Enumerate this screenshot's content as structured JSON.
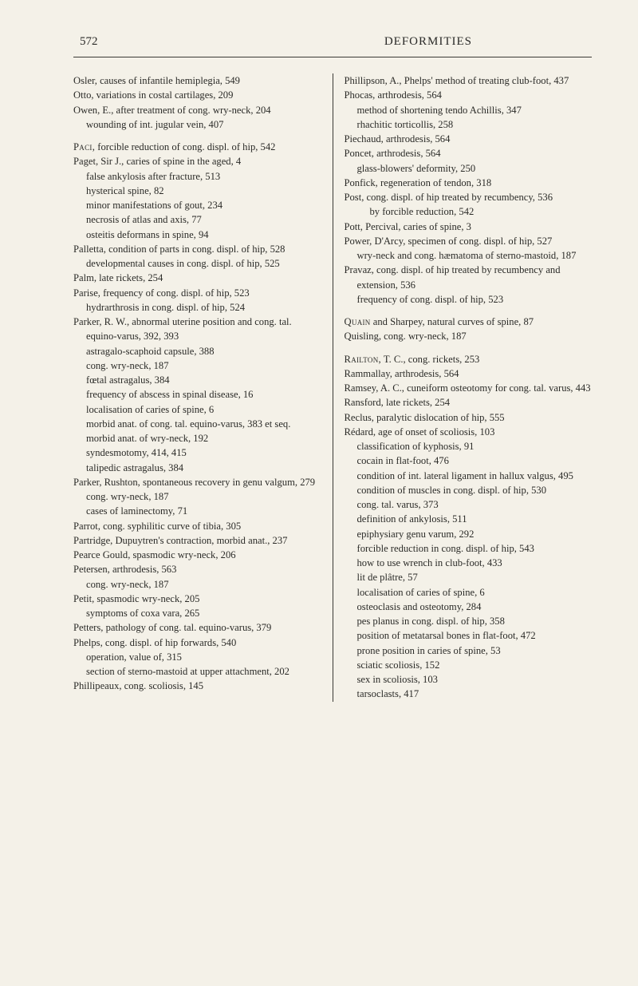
{
  "header": {
    "pageNumber": "572",
    "title": "DEFORMITIES"
  },
  "leftColumn": [
    {
      "t": "entry",
      "text": "Osler, causes of infantile hemiplegia, 549"
    },
    {
      "t": "entry",
      "text": "Otto, variations in costal cartilages, 209"
    },
    {
      "t": "entry",
      "text": "Owen, E., after treatment of cong. wry-neck, 204"
    },
    {
      "t": "sub",
      "text": "wounding of int. jugular vein, 407"
    },
    {
      "t": "gap"
    },
    {
      "t": "entry",
      "sc": "Paci,",
      "text": " forcible reduction of cong. displ. of hip, 542"
    },
    {
      "t": "entry",
      "text": "Paget, Sir J., caries of spine in the aged, 4"
    },
    {
      "t": "sub",
      "text": "false ankylosis after fracture, 513"
    },
    {
      "t": "sub",
      "text": "hysterical spine, 82"
    },
    {
      "t": "sub",
      "text": "minor manifestations of gout, 234"
    },
    {
      "t": "sub",
      "text": "necrosis of atlas and axis, 77"
    },
    {
      "t": "sub",
      "text": "osteitis deformans in spine, 94"
    },
    {
      "t": "entry",
      "text": "Palletta, condition of parts in cong. displ. of hip, 528"
    },
    {
      "t": "sub",
      "text": "developmental causes in cong. displ. of hip, 525"
    },
    {
      "t": "entry",
      "text": "Palm, late rickets, 254"
    },
    {
      "t": "entry",
      "text": "Parise, frequency of cong. displ. of hip, 523"
    },
    {
      "t": "sub",
      "text": "hydrarthrosis in cong. displ. of hip, 524"
    },
    {
      "t": "entry",
      "text": "Parker, R. W., abnormal uterine position and cong. tal. equino-varus, 392, 393"
    },
    {
      "t": "sub",
      "text": "astragalo-scaphoid capsule, 388"
    },
    {
      "t": "sub",
      "text": "cong. wry-neck, 187"
    },
    {
      "t": "sub",
      "text": "fœtal astragalus, 384"
    },
    {
      "t": "sub",
      "text": "frequency of abscess in spinal disease, 16"
    },
    {
      "t": "sub",
      "text": "localisation of caries of spine, 6"
    },
    {
      "t": "sub",
      "text": "morbid anat. of cong. tal. equino-varus, 383 et seq."
    },
    {
      "t": "sub",
      "text": "morbid anat. of wry-neck, 192"
    },
    {
      "t": "sub",
      "text": "syndesmotomy, 414, 415"
    },
    {
      "t": "sub",
      "text": "talipedic astragalus, 384"
    },
    {
      "t": "entry",
      "text": "Parker, Rushton, spontaneous recovery in genu valgum, 279"
    },
    {
      "t": "sub",
      "text": "cong. wry-neck, 187"
    },
    {
      "t": "sub",
      "text": "cases of laminectomy, 71"
    },
    {
      "t": "entry",
      "text": "Parrot, cong. syphilitic curve of tibia, 305"
    },
    {
      "t": "entry",
      "text": "Partridge, Dupuytren's contraction, morbid anat., 237"
    },
    {
      "t": "entry",
      "text": "Pearce Gould, spasmodic wry-neck, 206"
    },
    {
      "t": "entry",
      "text": "Petersen, arthrodesis, 563"
    },
    {
      "t": "sub",
      "text": "cong. wry-neck, 187"
    },
    {
      "t": "entry",
      "text": "Petit, spasmodic wry-neck, 205"
    },
    {
      "t": "sub",
      "text": "symptoms of coxa vara, 265"
    },
    {
      "t": "entry",
      "text": "Petters, pathology of cong. tal. equino-varus, 379"
    },
    {
      "t": "entry",
      "text": "Phelps, cong. displ. of hip forwards, 540"
    },
    {
      "t": "sub",
      "text": "operation, value of, 315"
    },
    {
      "t": "sub",
      "text": "section of sterno-mastoid at upper attachment, 202"
    },
    {
      "t": "entry",
      "text": "Phillipeaux, cong. scoliosis, 145"
    }
  ],
  "rightColumn": [
    {
      "t": "entry",
      "text": "Phillipson, A., Phelps' method of treating club-foot, 437"
    },
    {
      "t": "entry",
      "text": "Phocas, arthrodesis, 564"
    },
    {
      "t": "sub",
      "text": "method of shortening tendo Achillis, 347"
    },
    {
      "t": "sub",
      "text": "rhachitic torticollis, 258"
    },
    {
      "t": "entry",
      "text": "Piechaud, arthrodesis, 564"
    },
    {
      "t": "entry",
      "text": "Poncet, arthrodesis, 564"
    },
    {
      "t": "sub",
      "text": "glass-blowers' deformity, 250"
    },
    {
      "t": "entry",
      "text": "Ponfick, regeneration of tendon, 318"
    },
    {
      "t": "entry",
      "text": "Post, cong. displ. of hip treated by recumbency, 536"
    },
    {
      "t": "subsub",
      "text": "by forcible reduction, 542"
    },
    {
      "t": "entry",
      "text": "Pott, Percival, caries of spine, 3"
    },
    {
      "t": "entry",
      "text": "Power, D'Arcy, specimen of cong. displ. of hip, 527"
    },
    {
      "t": "sub",
      "text": "wry-neck and cong. hæmatoma of sterno-mastoid, 187"
    },
    {
      "t": "entry",
      "text": "Pravaz, cong. displ. of hip treated by recumbency and extension, 536"
    },
    {
      "t": "sub",
      "text": "frequency of cong. displ. of hip, 523"
    },
    {
      "t": "gap"
    },
    {
      "t": "entry",
      "sc": "Quain",
      "text": " and Sharpey, natural curves of spine, 87"
    },
    {
      "t": "entry",
      "text": "Quisling, cong. wry-neck, 187"
    },
    {
      "t": "gap"
    },
    {
      "t": "entry",
      "sc": "Railton,",
      "text": " T. C., cong. rickets, 253"
    },
    {
      "t": "entry",
      "text": "Rammallay, arthrodesis, 564"
    },
    {
      "t": "entry",
      "text": "Ramsey, A. C., cuneiform osteotomy for cong. tal. varus, 443"
    },
    {
      "t": "entry",
      "text": "Ransford, late rickets, 254"
    },
    {
      "t": "entry",
      "text": "Reclus, paralytic dislocation of hip, 555"
    },
    {
      "t": "entry",
      "text": "Rédard, age of onset of scoliosis, 103"
    },
    {
      "t": "sub",
      "text": "classification of kyphosis, 91"
    },
    {
      "t": "sub",
      "text": "cocain in flat-foot, 476"
    },
    {
      "t": "sub",
      "text": "condition of int. lateral ligament in hallux valgus, 495"
    },
    {
      "t": "sub",
      "text": "condition of muscles in cong. displ. of hip, 530"
    },
    {
      "t": "sub",
      "text": "cong. tal. varus, 373"
    },
    {
      "t": "sub",
      "text": "definition of ankylosis, 511"
    },
    {
      "t": "sub",
      "text": "epiphysiary genu varum, 292"
    },
    {
      "t": "sub",
      "text": "forcible reduction in cong. displ. of hip, 543"
    },
    {
      "t": "sub",
      "text": "how to use wrench in club-foot, 433"
    },
    {
      "t": "sub",
      "text": "lit de plâtre, 57"
    },
    {
      "t": "sub",
      "text": "localisation of caries of spine, 6"
    },
    {
      "t": "sub",
      "text": "osteoclasis and osteotomy, 284"
    },
    {
      "t": "sub",
      "text": "pes planus in cong. displ. of hip, 358"
    },
    {
      "t": "sub",
      "text": "position of metatarsal bones in flat-foot, 472"
    },
    {
      "t": "sub",
      "text": "prone position in caries of spine, 53"
    },
    {
      "t": "sub",
      "text": "sciatic scoliosis, 152"
    },
    {
      "t": "sub",
      "text": "sex in scoliosis, 103"
    },
    {
      "t": "sub",
      "text": "tarsoclasts, 417"
    }
  ]
}
